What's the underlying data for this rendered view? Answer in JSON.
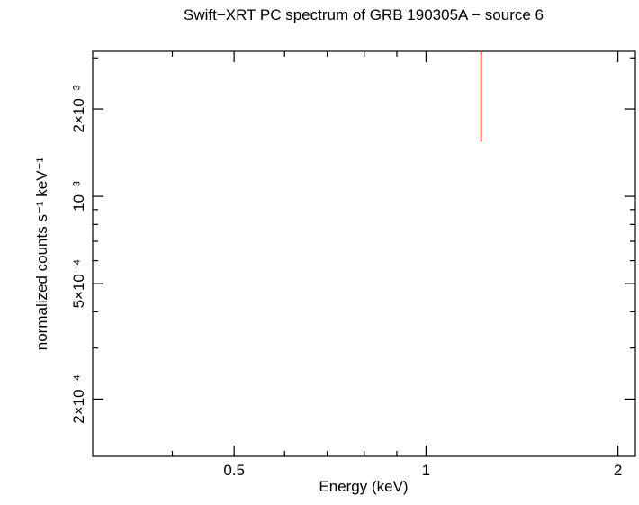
{
  "chart_data": {
    "type": "errorbar",
    "title": "Swift−XRT PC spectrum of GRB 190305A − source 6",
    "xlabel": "Energy (keV)",
    "ylabel": "normalized counts s⁻¹ keV⁻¹",
    "xscale": "log",
    "yscale": "log",
    "xlim": [
      0.3,
      2.13
    ],
    "ylim": [
      0.000127,
      0.00316
    ],
    "xticks": [
      0.5,
      1,
      2
    ],
    "xminor": [
      0.4,
      0.6,
      0.7,
      0.8,
      0.9
    ],
    "yticks": [
      {
        "value": 0.002,
        "label": "2×10⁻³"
      },
      {
        "value": 0.001,
        "label": "10⁻³"
      },
      {
        "value": 0.0005,
        "label": "5×10⁻⁴"
      },
      {
        "value": 0.0002,
        "label": "2×10⁻⁴"
      }
    ],
    "yminor": [
      0.003,
      0.0009,
      0.0008,
      0.0007,
      0.0006,
      0.0004,
      0.0003
    ],
    "series": [
      {
        "color": "#e00000",
        "x": [
          1.22
        ],
        "low": [
          0.00154
        ],
        "high": [
          0.00316
        ]
      }
    ]
  }
}
